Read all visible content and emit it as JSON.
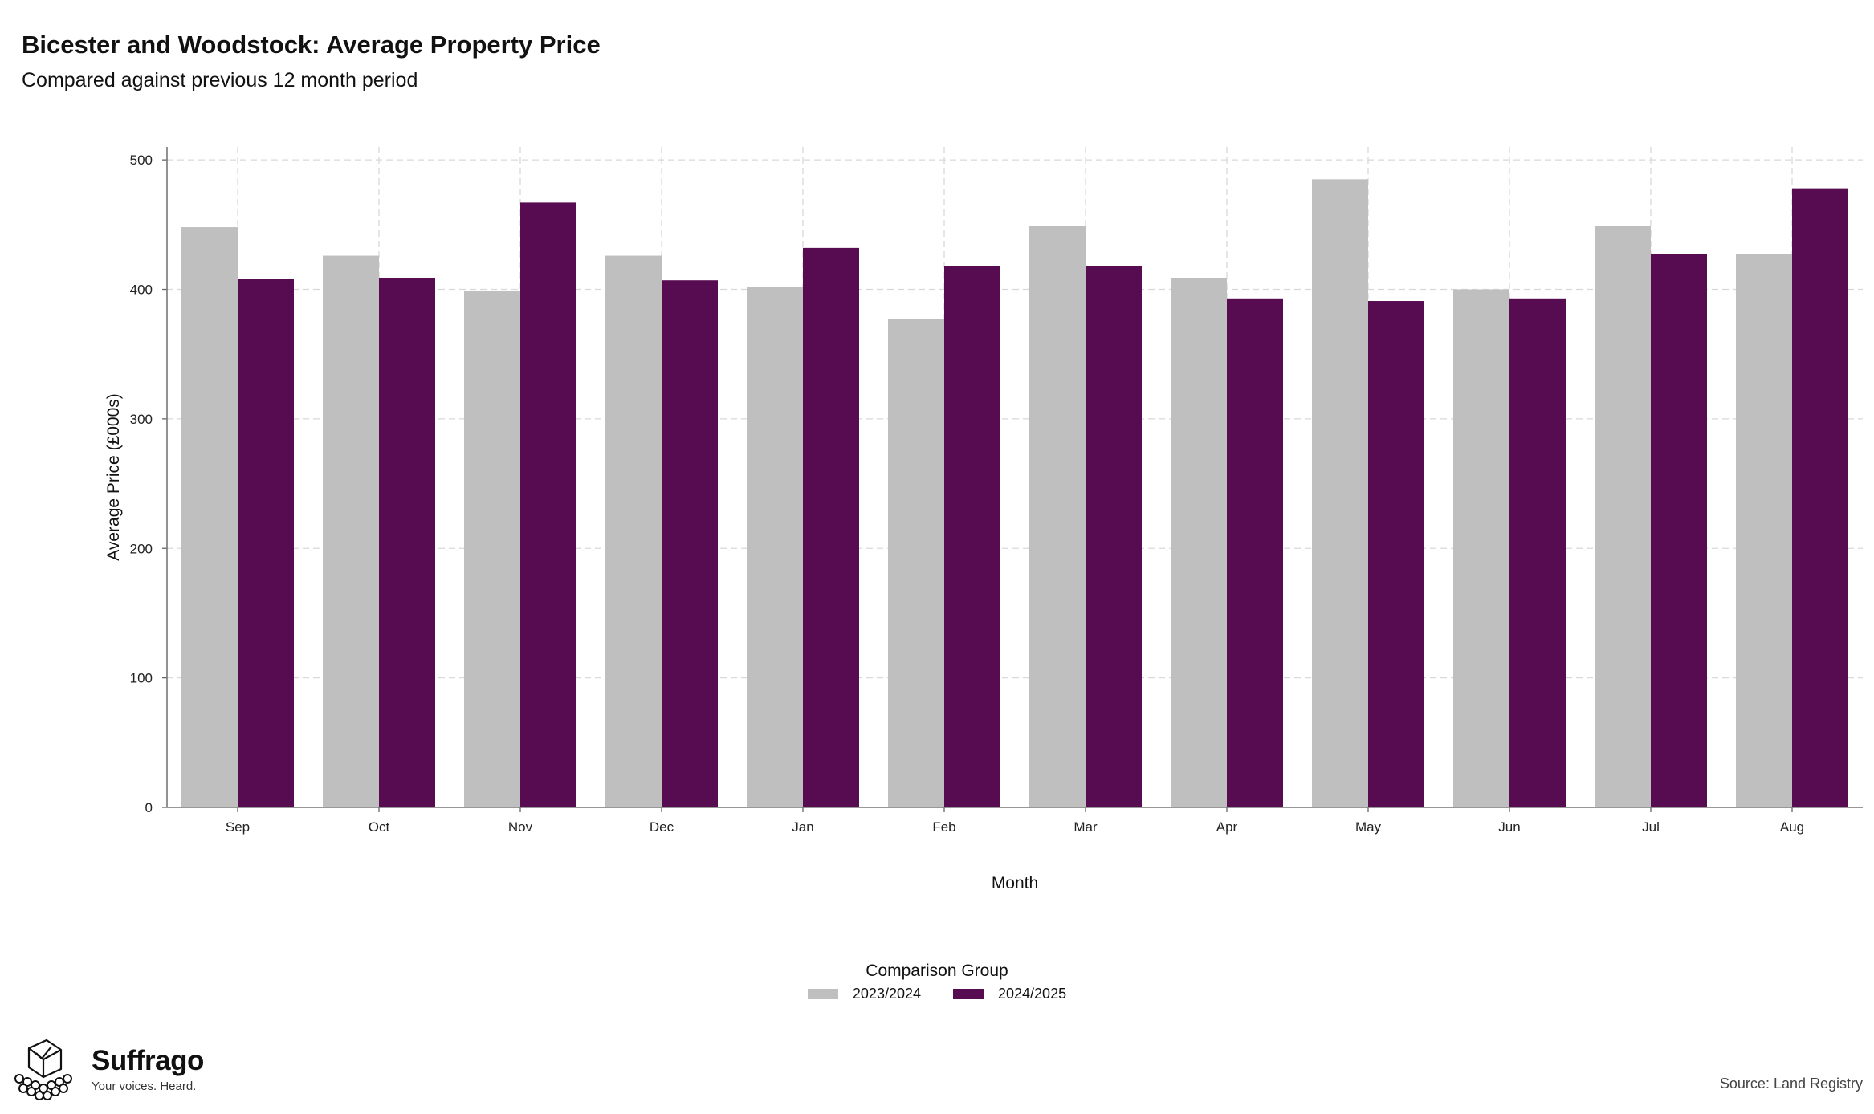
{
  "chart_data": {
    "type": "bar",
    "title": "Bicester and Woodstock: Average Property Price",
    "subtitle": "Compared against previous 12 month period",
    "xlabel": "Month",
    "ylabel": "Average Price (£000s)",
    "ylim": [
      0,
      510
    ],
    "yticks": [
      "0",
      "100",
      "200",
      "300",
      "400",
      "500"
    ],
    "grid": true,
    "legend_title": "Comparison Group",
    "legend_position": "bottom-center",
    "categories": [
      "Sep",
      "Oct",
      "Nov",
      "Dec",
      "Jan",
      "Feb",
      "Mar",
      "Apr",
      "May",
      "Jun",
      "Jul",
      "Aug"
    ],
    "series": [
      {
        "name": "2023/2024",
        "color": "#bfbfbf",
        "values": [
          448,
          426,
          399,
          426,
          402,
          377,
          449,
          409,
          485,
          400,
          449,
          427
        ]
      },
      {
        "name": "2024/2025",
        "color": "#570b50",
        "values": [
          408,
          409,
          467,
          407,
          432,
          418,
          418,
          393,
          391,
          393,
          427,
          478
        ]
      }
    ]
  },
  "branding": {
    "name": "Suffrago",
    "tagline": "Your voices. Heard.",
    "logo_icon": "ballot-box-crowd-icon"
  },
  "source_text": "Source: Land Registry"
}
